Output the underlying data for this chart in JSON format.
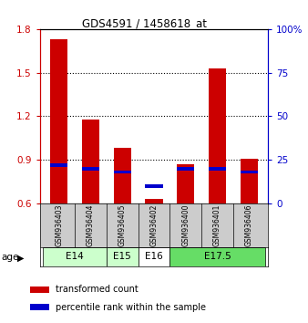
{
  "title": "GDS4591 / 1458618_at",
  "samples": [
    "GSM936403",
    "GSM936404",
    "GSM936405",
    "GSM936402",
    "GSM936400",
    "GSM936401",
    "GSM936406"
  ],
  "transformed_count": [
    1.73,
    1.18,
    0.98,
    0.63,
    0.87,
    1.53,
    0.91
  ],
  "percentile_rank": [
    22,
    20,
    18,
    10,
    20,
    20,
    18
  ],
  "ylim_left": [
    0.6,
    1.8
  ],
  "ylim_right": [
    0,
    100
  ],
  "yticks_left": [
    0.6,
    0.9,
    1.2,
    1.5,
    1.8
  ],
  "yticks_right": [
    0,
    25,
    50,
    75,
    100
  ],
  "ytick_labels_right": [
    "0",
    "25",
    "50",
    "75",
    "100%"
  ],
  "age_groups": [
    {
      "label": "E14",
      "samples": [
        "GSM936403",
        "GSM936404"
      ],
      "color": "#ccffcc"
    },
    {
      "label": "E15",
      "samples": [
        "GSM936405"
      ],
      "color": "#ccffcc"
    },
    {
      "label": "E16",
      "samples": [
        "GSM936402"
      ],
      "color": "#ffffff"
    },
    {
      "label": "E17.5",
      "samples": [
        "GSM936400",
        "GSM936401",
        "GSM936406"
      ],
      "color": "#66dd66"
    }
  ],
  "bar_color": "#cc0000",
  "percentile_color": "#0000cc",
  "bar_width": 0.55,
  "background_color": "#ffffff",
  "sample_bg_color": "#cccccc",
  "left_axis_color": "#cc0000",
  "right_axis_color": "#0000cc",
  "legend_items": [
    "transformed count",
    "percentile rank within the sample"
  ],
  "legend_colors": [
    "#cc0000",
    "#0000cc"
  ],
  "pct_bar_height": 0.022,
  "pct_bar_width": 0.55
}
